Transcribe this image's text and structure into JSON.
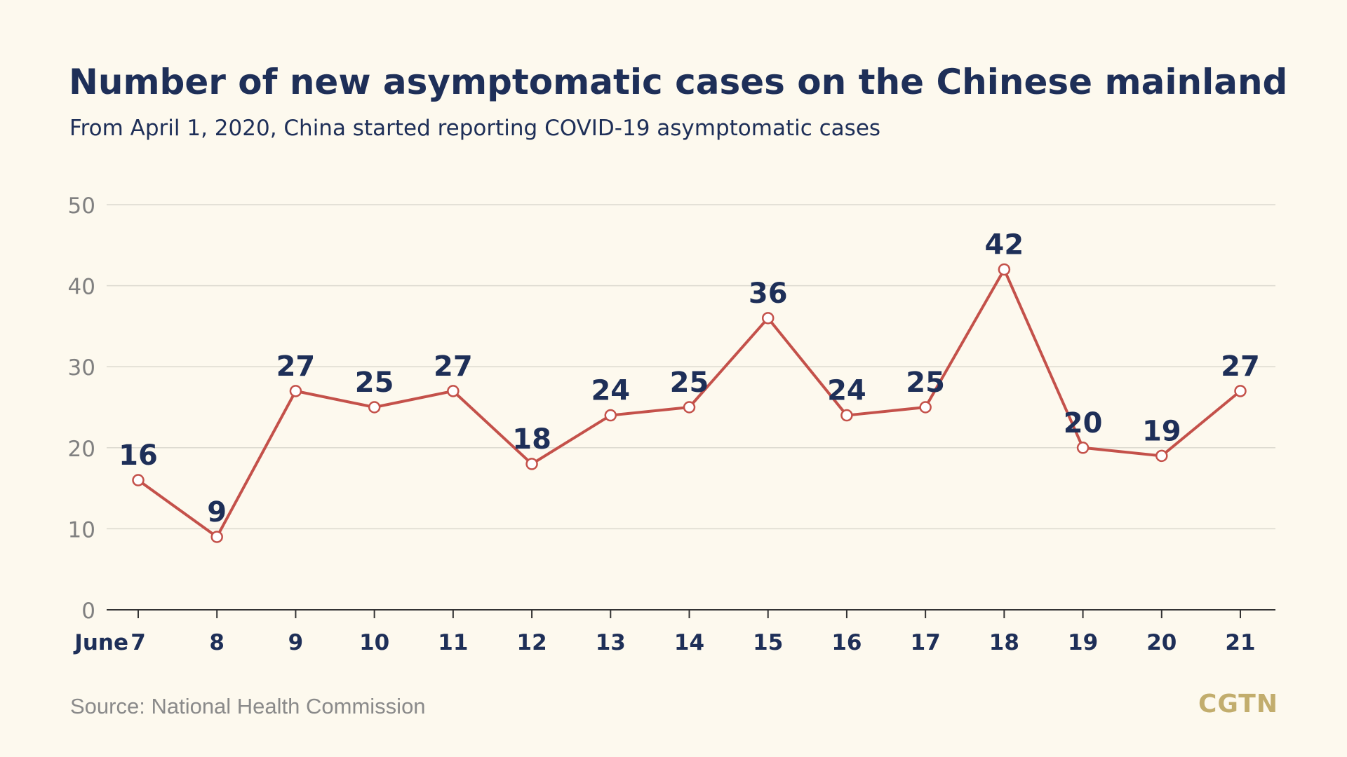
{
  "header": {
    "title": "Number of new asymptomatic cases on the Chinese mainland",
    "subtitle": "From April 1, 2020, China started reporting COVID-19 asymptomatic cases"
  },
  "footer": {
    "source": "Source: National Health Commission",
    "logo": "CGTN"
  },
  "colors": {
    "background": "#fdf9ee",
    "title": "#1e2f58",
    "line": "#c4514a",
    "grid": "#dcd9cf",
    "axis_tick_labels": "#808080",
    "logo": "#c2ad6d"
  },
  "chart_data": {
    "type": "line",
    "title": "Number of new asymptomatic cases on the Chinese mainland",
    "subtitle": "From April 1, 2020, China started reporting COVID-19 asymptomatic cases",
    "categories": [
      "7",
      "8",
      "9",
      "10",
      "11",
      "12",
      "13",
      "14",
      "15",
      "16",
      "17",
      "18",
      "19",
      "20",
      "21"
    ],
    "x_prefix": "June",
    "values": [
      16,
      9,
      27,
      25,
      27,
      18,
      24,
      25,
      36,
      24,
      25,
      42,
      20,
      19,
      27
    ],
    "ylim": [
      0,
      50
    ],
    "yticks": [
      0,
      10,
      20,
      30,
      40,
      50
    ],
    "xlabel": "",
    "ylabel": "",
    "grid": true,
    "legend": "none",
    "data_labels": true
  }
}
